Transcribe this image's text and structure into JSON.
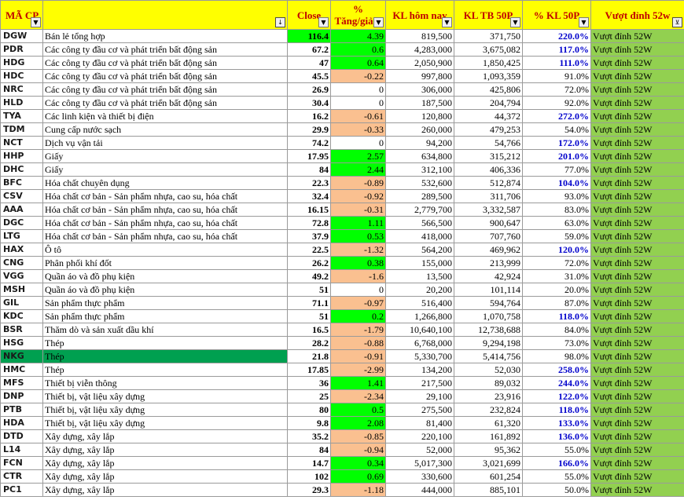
{
  "headers": {
    "ma": "MÃ CP",
    "close": "Close",
    "pct_line1": "%",
    "pct_line2": "Tăng/giảm",
    "kl": "KL hôm nay",
    "kltb": "KL TB 50P",
    "pctkl": "% KL 50P",
    "vd": "Vượt đỉnh 52w"
  },
  "rows": [
    {
      "code": "DGW",
      "industry": "Bán lẻ tổng hợp",
      "close": "116.4",
      "pct": "4.39",
      "kl": "819,500",
      "kltb": "371,750",
      "pctkl": "220.0%",
      "vd": "Vượt đỉnh 52W"
    },
    {
      "code": "PDR",
      "industry": "Các công ty đầu cơ và phát triển bất động sản",
      "close": "67.2",
      "pct": "0.6",
      "kl": "4,283,000",
      "kltb": "3,675,082",
      "pctkl": "117.0%",
      "vd": "Vượt đỉnh 52W"
    },
    {
      "code": "HDG",
      "industry": "Các công ty đầu cơ và phát triển bất động sản",
      "close": "47",
      "pct": "0.64",
      "kl": "2,050,900",
      "kltb": "1,850,425",
      "pctkl": "111.0%",
      "vd": "Vượt đỉnh 52W"
    },
    {
      "code": "HDC",
      "industry": "Các công ty đầu cơ và phát triển bất động sản",
      "close": "45.5",
      "pct": "-0.22",
      "kl": "997,800",
      "kltb": "1,093,359",
      "pctkl": "91.0%",
      "vd": "Vượt đỉnh 52W"
    },
    {
      "code": "NRC",
      "industry": "Các công ty đầu cơ và phát triển bất động sản",
      "close": "26.9",
      "pct": "0",
      "kl": "306,000",
      "kltb": "425,806",
      "pctkl": "72.0%",
      "vd": "Vượt đỉnh 52W"
    },
    {
      "code": "HLD",
      "industry": "Các công ty đầu cơ và phát triển bất động sản",
      "close": "30.4",
      "pct": "0",
      "kl": "187,500",
      "kltb": "204,794",
      "pctkl": "92.0%",
      "vd": "Vượt đỉnh 52W"
    },
    {
      "code": "TYA",
      "industry": "Các linh kiện và thiết bị điện",
      "close": "16.2",
      "pct": "-0.61",
      "kl": "120,800",
      "kltb": "44,372",
      "pctkl": "272.0%",
      "vd": "Vượt đỉnh 52W"
    },
    {
      "code": "TDM",
      "industry": "Cung cấp nước sạch",
      "close": "29.9",
      "pct": "-0.33",
      "kl": "260,000",
      "kltb": "479,253",
      "pctkl": "54.0%",
      "vd": "Vượt đỉnh 52W"
    },
    {
      "code": "NCT",
      "industry": "Dịch vụ vận tải",
      "close": "74.2",
      "pct": "0",
      "kl": "94,200",
      "kltb": "54,766",
      "pctkl": "172.0%",
      "vd": "Vượt đỉnh 52W"
    },
    {
      "code": "HHP",
      "industry": "Giấy",
      "close": "17.95",
      "pct": "2.57",
      "kl": "634,800",
      "kltb": "315,212",
      "pctkl": "201.0%",
      "vd": "Vượt đỉnh 52W"
    },
    {
      "code": "DHC",
      "industry": "Giấy",
      "close": "84",
      "pct": "2.44",
      "kl": "312,100",
      "kltb": "406,336",
      "pctkl": "77.0%",
      "vd": "Vượt đỉnh 52W"
    },
    {
      "code": "BFC",
      "industry": "Hóa chất chuyên dụng",
      "close": "22.3",
      "pct": "-0.89",
      "kl": "532,600",
      "kltb": "512,874",
      "pctkl": "104.0%",
      "vd": "Vượt đỉnh 52W"
    },
    {
      "code": "CSV",
      "industry": "Hóa chất cơ bản - Sản phẩm nhựa, cao su, hóa chất",
      "close": "32.4",
      "pct": "-0.92",
      "kl": "289,500",
      "kltb": "311,706",
      "pctkl": "93.0%",
      "vd": "Vượt đỉnh 52W"
    },
    {
      "code": "AAA",
      "industry": "Hóa chất cơ bản - Sản phẩm nhựa, cao su, hóa chất",
      "close": "16.15",
      "pct": "-0.31",
      "kl": "2,779,700",
      "kltb": "3,332,587",
      "pctkl": "83.0%",
      "vd": "Vượt đỉnh 52W"
    },
    {
      "code": "DGC",
      "industry": "Hóa chất cơ bản - Sản phẩm nhựa, cao su, hóa chất",
      "close": "72.8",
      "pct": "1.11",
      "kl": "566,500",
      "kltb": "900,647",
      "pctkl": "63.0%",
      "vd": "Vượt đỉnh 52W"
    },
    {
      "code": "LTG",
      "industry": "Hóa chất cơ bản - Sản phẩm nhựa, cao su, hóa chất",
      "close": "37.9",
      "pct": "0.53",
      "kl": "418,000",
      "kltb": "707,760",
      "pctkl": "59.0%",
      "vd": "Vượt đỉnh 52W"
    },
    {
      "code": "HAX",
      "industry": "Ô tô",
      "close": "22.5",
      "pct": "-1.32",
      "kl": "564,200",
      "kltb": "469,962",
      "pctkl": "120.0%",
      "vd": "Vượt đỉnh 52W"
    },
    {
      "code": "CNG",
      "industry": "Phân phối khí đốt",
      "close": "26.2",
      "pct": "0.38",
      "kl": "155,000",
      "kltb": "213,999",
      "pctkl": "72.0%",
      "vd": "Vượt đỉnh 52W"
    },
    {
      "code": "VGG",
      "industry": "Quần áo và đồ phụ kiện",
      "close": "49.2",
      "pct": "-1.6",
      "kl": "13,500",
      "kltb": "42,924",
      "pctkl": "31.0%",
      "vd": "Vượt đỉnh 52W"
    },
    {
      "code": "MSH",
      "industry": "Quần áo và đồ phụ kiện",
      "close": "51",
      "pct": "0",
      "kl": "20,200",
      "kltb": "101,114",
      "pctkl": "20.0%",
      "vd": "Vượt đỉnh 52W"
    },
    {
      "code": "GIL",
      "industry": "Sản phẩm thực phẩm",
      "close": "71.1",
      "pct": "-0.97",
      "kl": "516,400",
      "kltb": "594,764",
      "pctkl": "87.0%",
      "vd": "Vượt đỉnh 52W"
    },
    {
      "code": "KDC",
      "industry": "Sản phẩm thực phẩm",
      "close": "51",
      "pct": "0.2",
      "kl": "1,266,800",
      "kltb": "1,070,758",
      "pctkl": "118.0%",
      "vd": "Vượt đỉnh 52W"
    },
    {
      "code": "BSR",
      "industry": "Thăm dò và sản xuất dầu khí",
      "close": "16.5",
      "pct": "-1.79",
      "kl": "10,640,100",
      "kltb": "12,738,688",
      "pctkl": "84.0%",
      "vd": "Vượt đỉnh 52W"
    },
    {
      "code": "HSG",
      "industry": "Thép",
      "close": "28.2",
      "pct": "-0.88",
      "kl": "6,768,000",
      "kltb": "9,294,198",
      "pctkl": "73.0%",
      "vd": "Vượt đỉnh 52W"
    },
    {
      "code": "NKG",
      "industry": "Thép",
      "close": "21.8",
      "pct": "-0.91",
      "kl": "5,330,700",
      "kltb": "5,414,756",
      "pctkl": "98.0%",
      "vd": "Vượt đỉnh 52W"
    },
    {
      "code": "HMC",
      "industry": "Thép",
      "close": "17.85",
      "pct": "-2.99",
      "kl": "134,200",
      "kltb": "52,030",
      "pctkl": "258.0%",
      "vd": "Vượt đỉnh 52W"
    },
    {
      "code": "MFS",
      "industry": "Thiết bị viễn thông",
      "close": "36",
      "pct": "1.41",
      "kl": "217,500",
      "kltb": "89,032",
      "pctkl": "244.0%",
      "vd": "Vượt đỉnh 52W"
    },
    {
      "code": "DNP",
      "industry": "Thiết bị, vật liệu xây dựng",
      "close": "25",
      "pct": "-2.34",
      "kl": "29,100",
      "kltb": "23,916",
      "pctkl": "122.0%",
      "vd": "Vượt đỉnh 52W"
    },
    {
      "code": "PTB",
      "industry": "Thiết bị, vật liệu xây dựng",
      "close": "80",
      "pct": "0.5",
      "kl": "275,500",
      "kltb": "232,824",
      "pctkl": "118.0%",
      "vd": "Vượt đỉnh 52W"
    },
    {
      "code": "HDA",
      "industry": "Thiết bị, vật liệu xây dựng",
      "close": "9.8",
      "pct": "2.08",
      "kl": "81,400",
      "kltb": "61,320",
      "pctkl": "133.0%",
      "vd": "Vượt đỉnh 52W"
    },
    {
      "code": "DTD",
      "industry": "Xây dựng, xây lắp",
      "close": "35.2",
      "pct": "-0.85",
      "kl": "220,100",
      "kltb": "161,892",
      "pctkl": "136.0%",
      "vd": "Vượt đỉnh 52W"
    },
    {
      "code": "L14",
      "industry": "Xây dựng, xây lắp",
      "close": "84",
      "pct": "-0.94",
      "kl": "52,000",
      "kltb": "95,362",
      "pctkl": "55.0%",
      "vd": "Vượt đỉnh 52W"
    },
    {
      "code": "FCN",
      "industry": "Xây dựng, xây lắp",
      "close": "14.7",
      "pct": "0.34",
      "kl": "5,017,300",
      "kltb": "3,021,699",
      "pctkl": "166.0%",
      "vd": "Vượt đỉnh 52W"
    },
    {
      "code": "CTR",
      "industry": "Xây dựng, xây lắp",
      "close": "102",
      "pct": "0.69",
      "kl": "330,600",
      "kltb": "601,254",
      "pctkl": "55.0%",
      "vd": "Vượt đỉnh 52W"
    },
    {
      "code": "PC1",
      "industry": "Xây dựng, xây lắp",
      "close": "29.3",
      "pct": "-1.18",
      "kl": "444,000",
      "kltb": "885,101",
      "pctkl": "50.0%",
      "vd": "Vượt đỉnh 52W"
    }
  ],
  "dropdown_icon": "chevron-down-icon",
  "sort_icon": "sort-icon",
  "filter_icon": "filter-icon",
  "colors": {
    "header_bg": "#ffff00",
    "header_text": "#c00000",
    "up": "#00ff00",
    "down": "#fac090",
    "badge": "#92d050",
    "selected": "#00a050",
    "high_volume": "#0000cc"
  }
}
